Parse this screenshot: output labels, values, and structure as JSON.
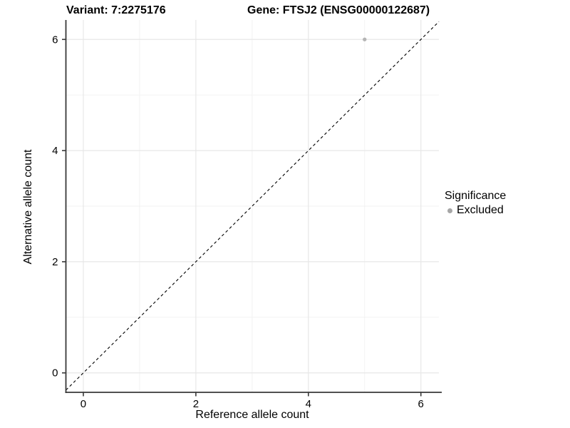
{
  "titles": {
    "variant": "Variant: 7:2275176",
    "gene": "Gene: FTSJ2 (ENSG00000122687)"
  },
  "legend": {
    "title": "Significance",
    "items": [
      {
        "label": "Excluded",
        "color": "#a6a6a6"
      }
    ]
  },
  "chart_data": {
    "type": "scatter",
    "title": "Variant: 7:2275176   Gene: FTSJ2 (ENSG00000122687)",
    "xlabel": "Reference allele count",
    "ylabel": "Alternative allele count",
    "xlim": [
      -0.31,
      6.32
    ],
    "ylim": [
      -0.35,
      6.35
    ],
    "xticks": [
      0,
      2,
      4,
      6
    ],
    "yticks": [
      0,
      2,
      4,
      6
    ],
    "minor_xticks": [
      1,
      3,
      5
    ],
    "minor_yticks": [
      1,
      3,
      5
    ],
    "grid": true,
    "legend_position": "right-center",
    "series": [
      {
        "name": "Excluded",
        "color": "#b5b5b5",
        "points": [
          {
            "x": 5,
            "y": 6
          }
        ]
      }
    ],
    "reference_line": {
      "kind": "identity",
      "slope": 1,
      "intercept": 0,
      "style": "dashed",
      "color": "#000000"
    }
  },
  "colors": {
    "axis_line": "#383838",
    "grid_major": "#e7e7e7",
    "grid_minor": "#f1f1f1",
    "tick": "#383838",
    "text": "#000000"
  }
}
